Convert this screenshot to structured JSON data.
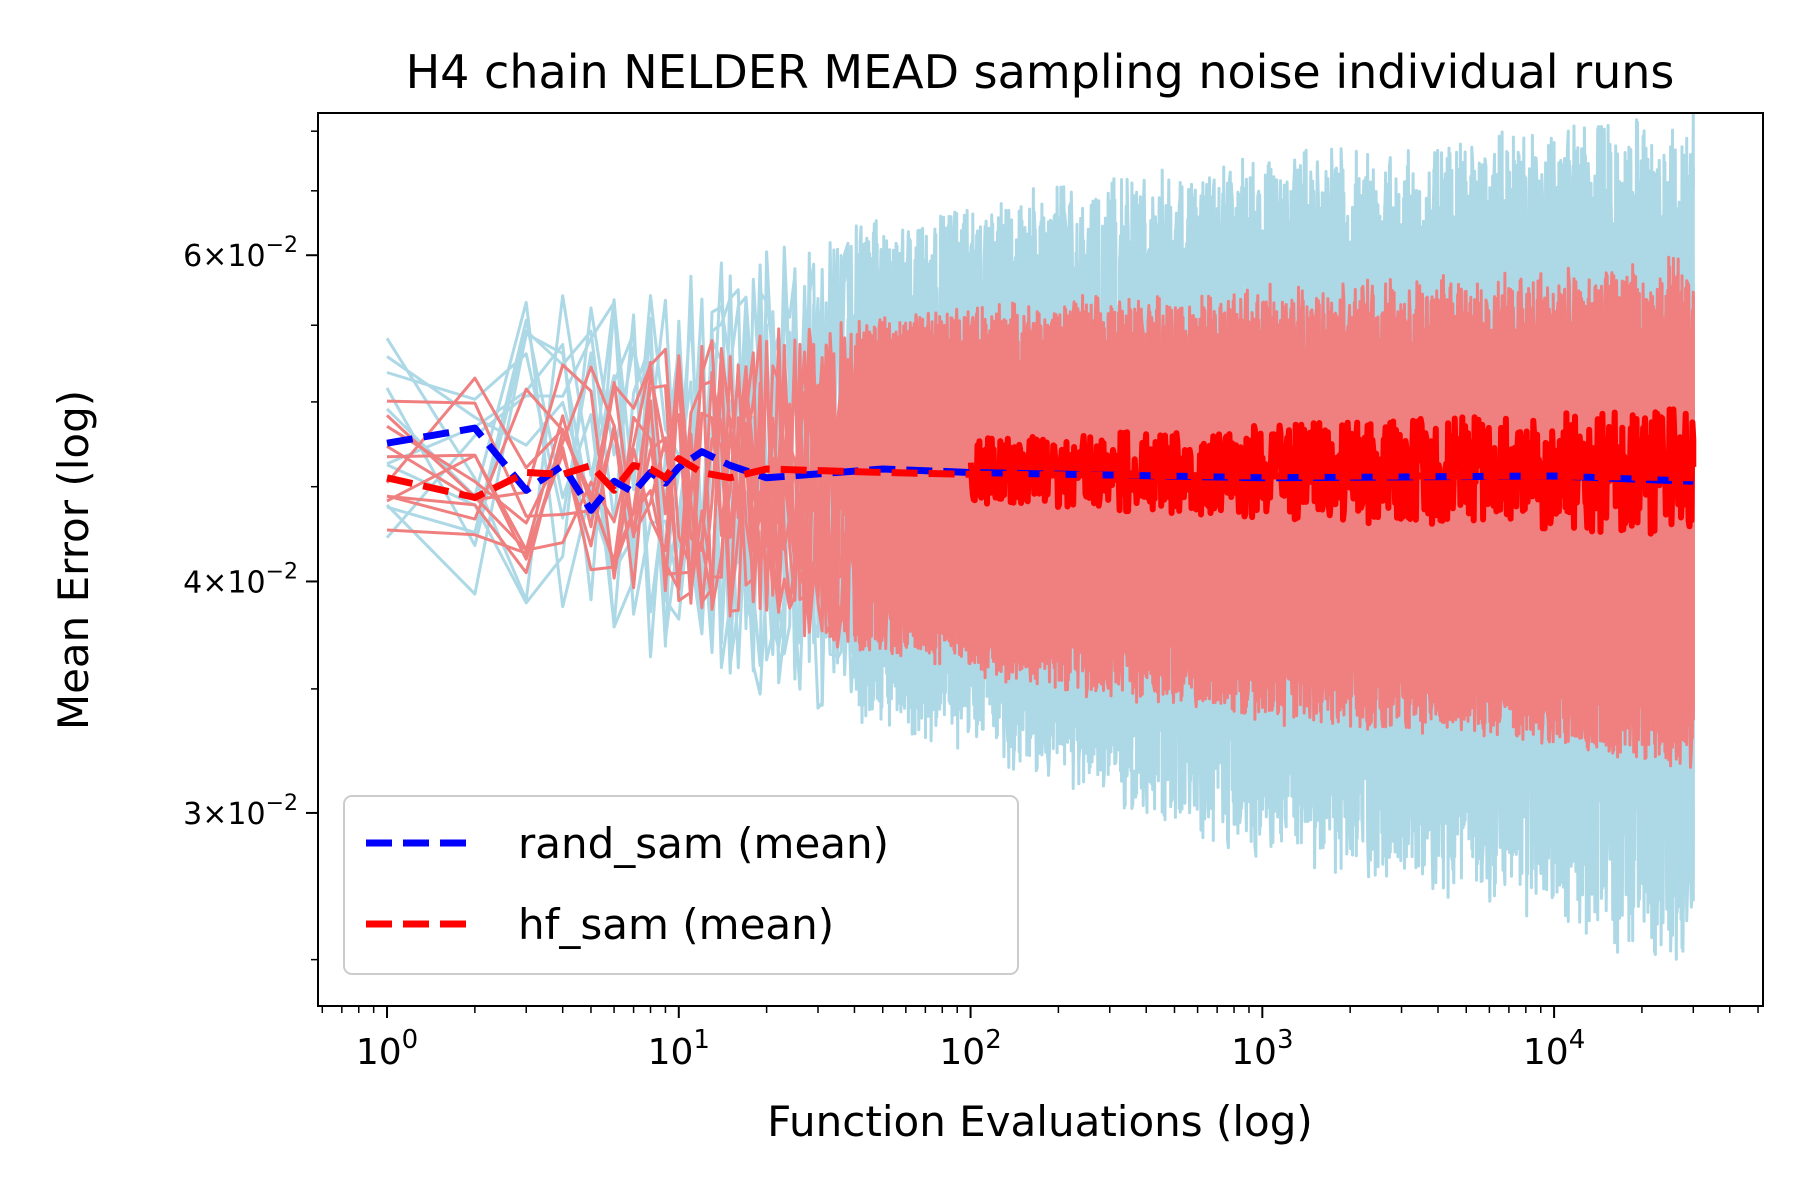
{
  "chart_data": {
    "type": "line",
    "title": "H4 chain NELDER MEAD sampling noise individual runs",
    "xlabel": "Function Evaluations (log)",
    "ylabel": "Mean Error (log)",
    "xscale": "log",
    "yscale": "log",
    "xlim": [
      0.58,
      52000
    ],
    "ylim": [
      0.0236,
      0.0716
    ],
    "xticks": [
      {
        "value": 1,
        "base": "10",
        "exp": "0"
      },
      {
        "value": 10,
        "base": "10",
        "exp": "1"
      },
      {
        "value": 100,
        "base": "10",
        "exp": "2"
      },
      {
        "value": 1000,
        "base": "10",
        "exp": "3"
      },
      {
        "value": 10000,
        "base": "10",
        "exp": "4"
      }
    ],
    "yticks": [
      {
        "value": 0.06,
        "mant": "6",
        "exp": "−2"
      },
      {
        "value": 0.04,
        "mant": "4",
        "exp": "−2"
      },
      {
        "value": 0.03,
        "mant": "3",
        "exp": "−2"
      }
    ],
    "x_max_evaluations": 30000,
    "colors": {
      "rand_runs": "#add8e6",
      "hf_runs": "#f08080",
      "rand_mean": "#0000ff",
      "hf_mean": "#ff0000"
    },
    "series": [
      {
        "name": "rand_sam (mean)",
        "color": "#0000ff",
        "style": "dashed",
        "x": [
          1,
          2,
          3,
          4,
          5,
          6,
          7,
          8,
          9,
          10,
          12,
          15,
          20,
          50,
          100,
          1000,
          10000,
          30000
        ],
        "values": [
          0.0475,
          0.0484,
          0.0448,
          0.0462,
          0.0437,
          0.0453,
          0.0447,
          0.0458,
          0.0452,
          0.0461,
          0.047,
          0.0462,
          0.0455,
          0.046,
          0.0458,
          0.0455,
          0.0456,
          0.0453
        ],
        "noise_envelope": {
          "x": [
            1,
            10,
            100,
            1000,
            10000,
            30000
          ],
          "upper": [
            0.054,
            0.058,
            0.063,
            0.066,
            0.068,
            0.069
          ],
          "lower": [
            0.041,
            0.036,
            0.033,
            0.029,
            0.027,
            0.025
          ]
        }
      },
      {
        "name": "hf_sam (mean)",
        "color": "#ff0000",
        "style": "dashed",
        "x": [
          1,
          2,
          3,
          4,
          5,
          6,
          7,
          8,
          9,
          10,
          12,
          15,
          20,
          50,
          100,
          1000,
          10000,
          30000
        ],
        "values": [
          0.0455,
          0.0444,
          0.0458,
          0.0457,
          0.0462,
          0.0448,
          0.0462,
          0.046,
          0.0455,
          0.0466,
          0.0458,
          0.0455,
          0.046,
          0.0458,
          0.0457,
          0.0456,
          0.0456,
          0.0455
        ],
        "noise_envelope": {
          "x": [
            1,
            10,
            100,
            1000,
            10000,
            30000
          ],
          "upper": [
            0.051,
            0.054,
            0.056,
            0.057,
            0.058,
            0.059
          ],
          "lower": [
            0.042,
            0.039,
            0.036,
            0.034,
            0.033,
            0.032
          ]
        },
        "mean_band": {
          "x": [
            100,
            1000,
            10000,
            30000
          ],
          "upper": [
            0.0478,
            0.0486,
            0.0493,
            0.0496
          ],
          "lower": [
            0.0441,
            0.0432,
            0.0426,
            0.0422
          ]
        }
      }
    ],
    "legend": {
      "position": "lower-left",
      "entries": [
        {
          "label": "rand_sam (mean)",
          "color": "#0000ff"
        },
        {
          "label": "hf_sam (mean)",
          "color": "#ff0000"
        }
      ]
    }
  }
}
